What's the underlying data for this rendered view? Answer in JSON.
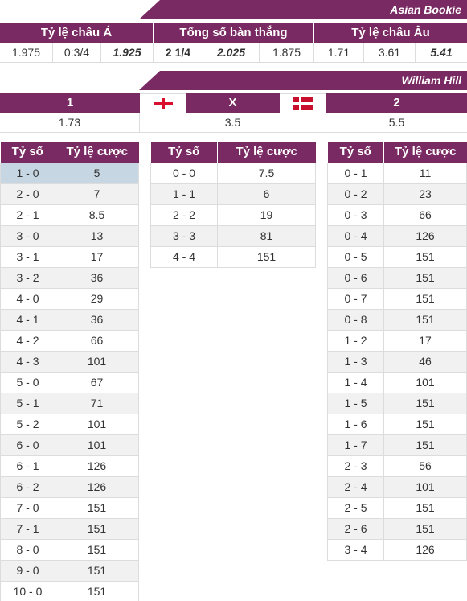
{
  "asian_bookie": {
    "name": "Asian Bookie",
    "headers": [
      "Tỷ lệ châu Á",
      "Tổng số bàn thắng",
      "Tỷ lệ châu Âu"
    ],
    "values": [
      "1.975",
      "0:3/4",
      "1.925",
      "2 1/4",
      "2.025",
      "1.875",
      "1.71",
      "3.61",
      "5.41"
    ]
  },
  "william_hill": {
    "name": "William Hill",
    "labels": [
      "1",
      "X",
      "2"
    ],
    "flag_home": "england-flag",
    "flag_away": "denmark-flag",
    "values": [
      "1.73",
      "3.5",
      "5.5"
    ]
  },
  "score_table": {
    "col_score": "Tỷ số",
    "col_odds": "Tỷ lệ cược",
    "home_wins": [
      [
        "1 - 0",
        "5"
      ],
      [
        "2 - 0",
        "7"
      ],
      [
        "2 - 1",
        "8.5"
      ],
      [
        "3 - 0",
        "13"
      ],
      [
        "3 - 1",
        "17"
      ],
      [
        "3 - 2",
        "36"
      ],
      [
        "4 - 0",
        "29"
      ],
      [
        "4 - 1",
        "36"
      ],
      [
        "4 - 2",
        "66"
      ],
      [
        "4 - 3",
        "101"
      ],
      [
        "5 - 0",
        "67"
      ],
      [
        "5 - 1",
        "71"
      ],
      [
        "5 - 2",
        "101"
      ],
      [
        "6 - 0",
        "101"
      ],
      [
        "6 - 1",
        "126"
      ],
      [
        "6 - 2",
        "126"
      ],
      [
        "7 - 0",
        "151"
      ],
      [
        "7 - 1",
        "151"
      ],
      [
        "8 - 0",
        "151"
      ],
      [
        "9 - 0",
        "151"
      ],
      [
        "10 - 0",
        "151"
      ]
    ],
    "draws": [
      [
        "0 - 0",
        "7.5"
      ],
      [
        "1 - 1",
        "6"
      ],
      [
        "2 - 2",
        "19"
      ],
      [
        "3 - 3",
        "81"
      ],
      [
        "4 - 4",
        "151"
      ]
    ],
    "away_wins": [
      [
        "0 - 1",
        "11"
      ],
      [
        "0 - 2",
        "23"
      ],
      [
        "0 - 3",
        "66"
      ],
      [
        "0 - 4",
        "126"
      ],
      [
        "0 - 5",
        "151"
      ],
      [
        "0 - 6",
        "151"
      ],
      [
        "0 - 7",
        "151"
      ],
      [
        "0 - 8",
        "151"
      ],
      [
        "1 - 2",
        "17"
      ],
      [
        "1 - 3",
        "46"
      ],
      [
        "1 - 4",
        "101"
      ],
      [
        "1 - 5",
        "151"
      ],
      [
        "1 - 6",
        "151"
      ],
      [
        "1 - 7",
        "151"
      ],
      [
        "2 - 3",
        "56"
      ],
      [
        "2 - 4",
        "101"
      ],
      [
        "2 - 5",
        "151"
      ],
      [
        "2 - 6",
        "151"
      ],
      [
        "3 - 4",
        "126"
      ]
    ]
  },
  "colors": {
    "header_bg": "#7a2a63",
    "highlight": "#c7d6e3",
    "red": "#d0021b",
    "green": "#2e7d1a",
    "blue": "#2b3f9c"
  }
}
